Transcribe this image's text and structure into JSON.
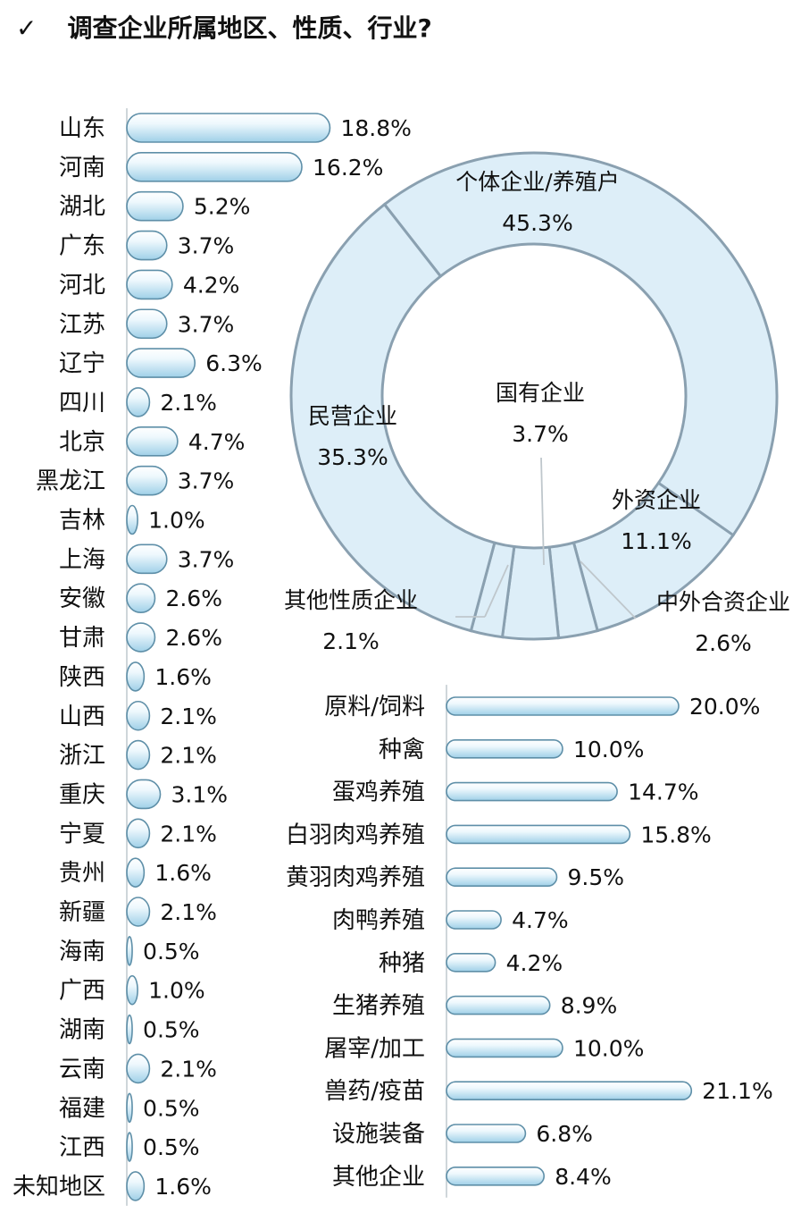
{
  "header": {
    "check": "✓",
    "title": "调查企业所属地区、性质、行业?"
  },
  "chart_data": [
    {
      "type": "bar",
      "categories": [
        "山东",
        "河南",
        "湖北",
        "广东",
        "河北",
        "江苏",
        "辽宁",
        "四川",
        "北京",
        "黑龙江",
        "吉林",
        "上海",
        "安徽",
        "甘肃",
        "陕西",
        "山西",
        "浙江",
        "重庆",
        "宁夏",
        "贵州",
        "新疆",
        "海南",
        "广西",
        "湖南",
        "云南",
        "福建",
        "江西",
        "未知地区"
      ],
      "values": [
        18.8,
        16.2,
        5.2,
        3.7,
        4.2,
        3.7,
        6.3,
        2.1,
        4.7,
        3.7,
        1.0,
        3.7,
        2.6,
        2.6,
        1.6,
        2.1,
        2.1,
        3.1,
        2.1,
        1.6,
        2.1,
        0.5,
        1.0,
        0.5,
        2.1,
        0.5,
        0.5,
        1.6
      ],
      "labels": [
        "18.8%",
        "16.2%",
        "5.2%",
        "3.7%",
        "4.2%",
        "3.7%",
        "6.3%",
        "2.1%",
        "4.7%",
        "3.7%",
        "1.0%",
        "3.7%",
        "2.6%",
        "2.6%",
        "1.6%",
        "2.1%",
        "2.1%",
        "3.1%",
        "2.1%",
        "1.6%",
        "2.1%",
        "0.5%",
        "1.0%",
        "0.5%",
        "2.1%",
        "0.5%",
        "0.5%",
        "1.6%"
      ],
      "orientation": "horizontal",
      "unit": "%"
    },
    {
      "type": "pie",
      "donut": true,
      "slices": [
        {
          "name": "个体企业/养殖户",
          "value": 45.3,
          "label": "45.3%"
        },
        {
          "name": "外资企业",
          "value": 11.1,
          "label": "11.1%"
        },
        {
          "name": "中外合资企业",
          "value": 2.6,
          "label": "2.6%"
        },
        {
          "name": "国有企业",
          "value": 3.7,
          "label": "3.7%"
        },
        {
          "name": "其他性质企业",
          "value": 2.1,
          "label": "2.1%"
        },
        {
          "name": "民营企业",
          "value": 35.3,
          "label": "35.3%"
        }
      ],
      "color": "#ddeef8",
      "stroke": "#8aa0b0"
    },
    {
      "type": "bar",
      "categories": [
        "原料/饲料",
        "种禽",
        "蛋鸡养殖",
        "白羽肉鸡养殖",
        "黄羽肉鸡养殖",
        "肉鸭养殖",
        "种猪",
        "生猪养殖",
        "屠宰/加工",
        "兽药/疫苗",
        "设施装备",
        "其他企业"
      ],
      "values": [
        20.0,
        10.0,
        14.7,
        15.8,
        9.5,
        4.7,
        4.2,
        8.9,
        10.0,
        21.1,
        6.8,
        8.4
      ],
      "labels": [
        "20.0%",
        "10.0%",
        "14.7%",
        "15.8%",
        "9.5%",
        "4.7%",
        "4.2%",
        "8.9%",
        "10.0%",
        "21.1%",
        "6.8%",
        "8.4%"
      ],
      "orientation": "horizontal",
      "unit": "%"
    }
  ],
  "colors": {
    "bar_light": "#eef8fd",
    "bar_dark": "#9fd0e8",
    "bar_stroke": "#5e8fa8",
    "donut_fill": "#ddeef8"
  }
}
